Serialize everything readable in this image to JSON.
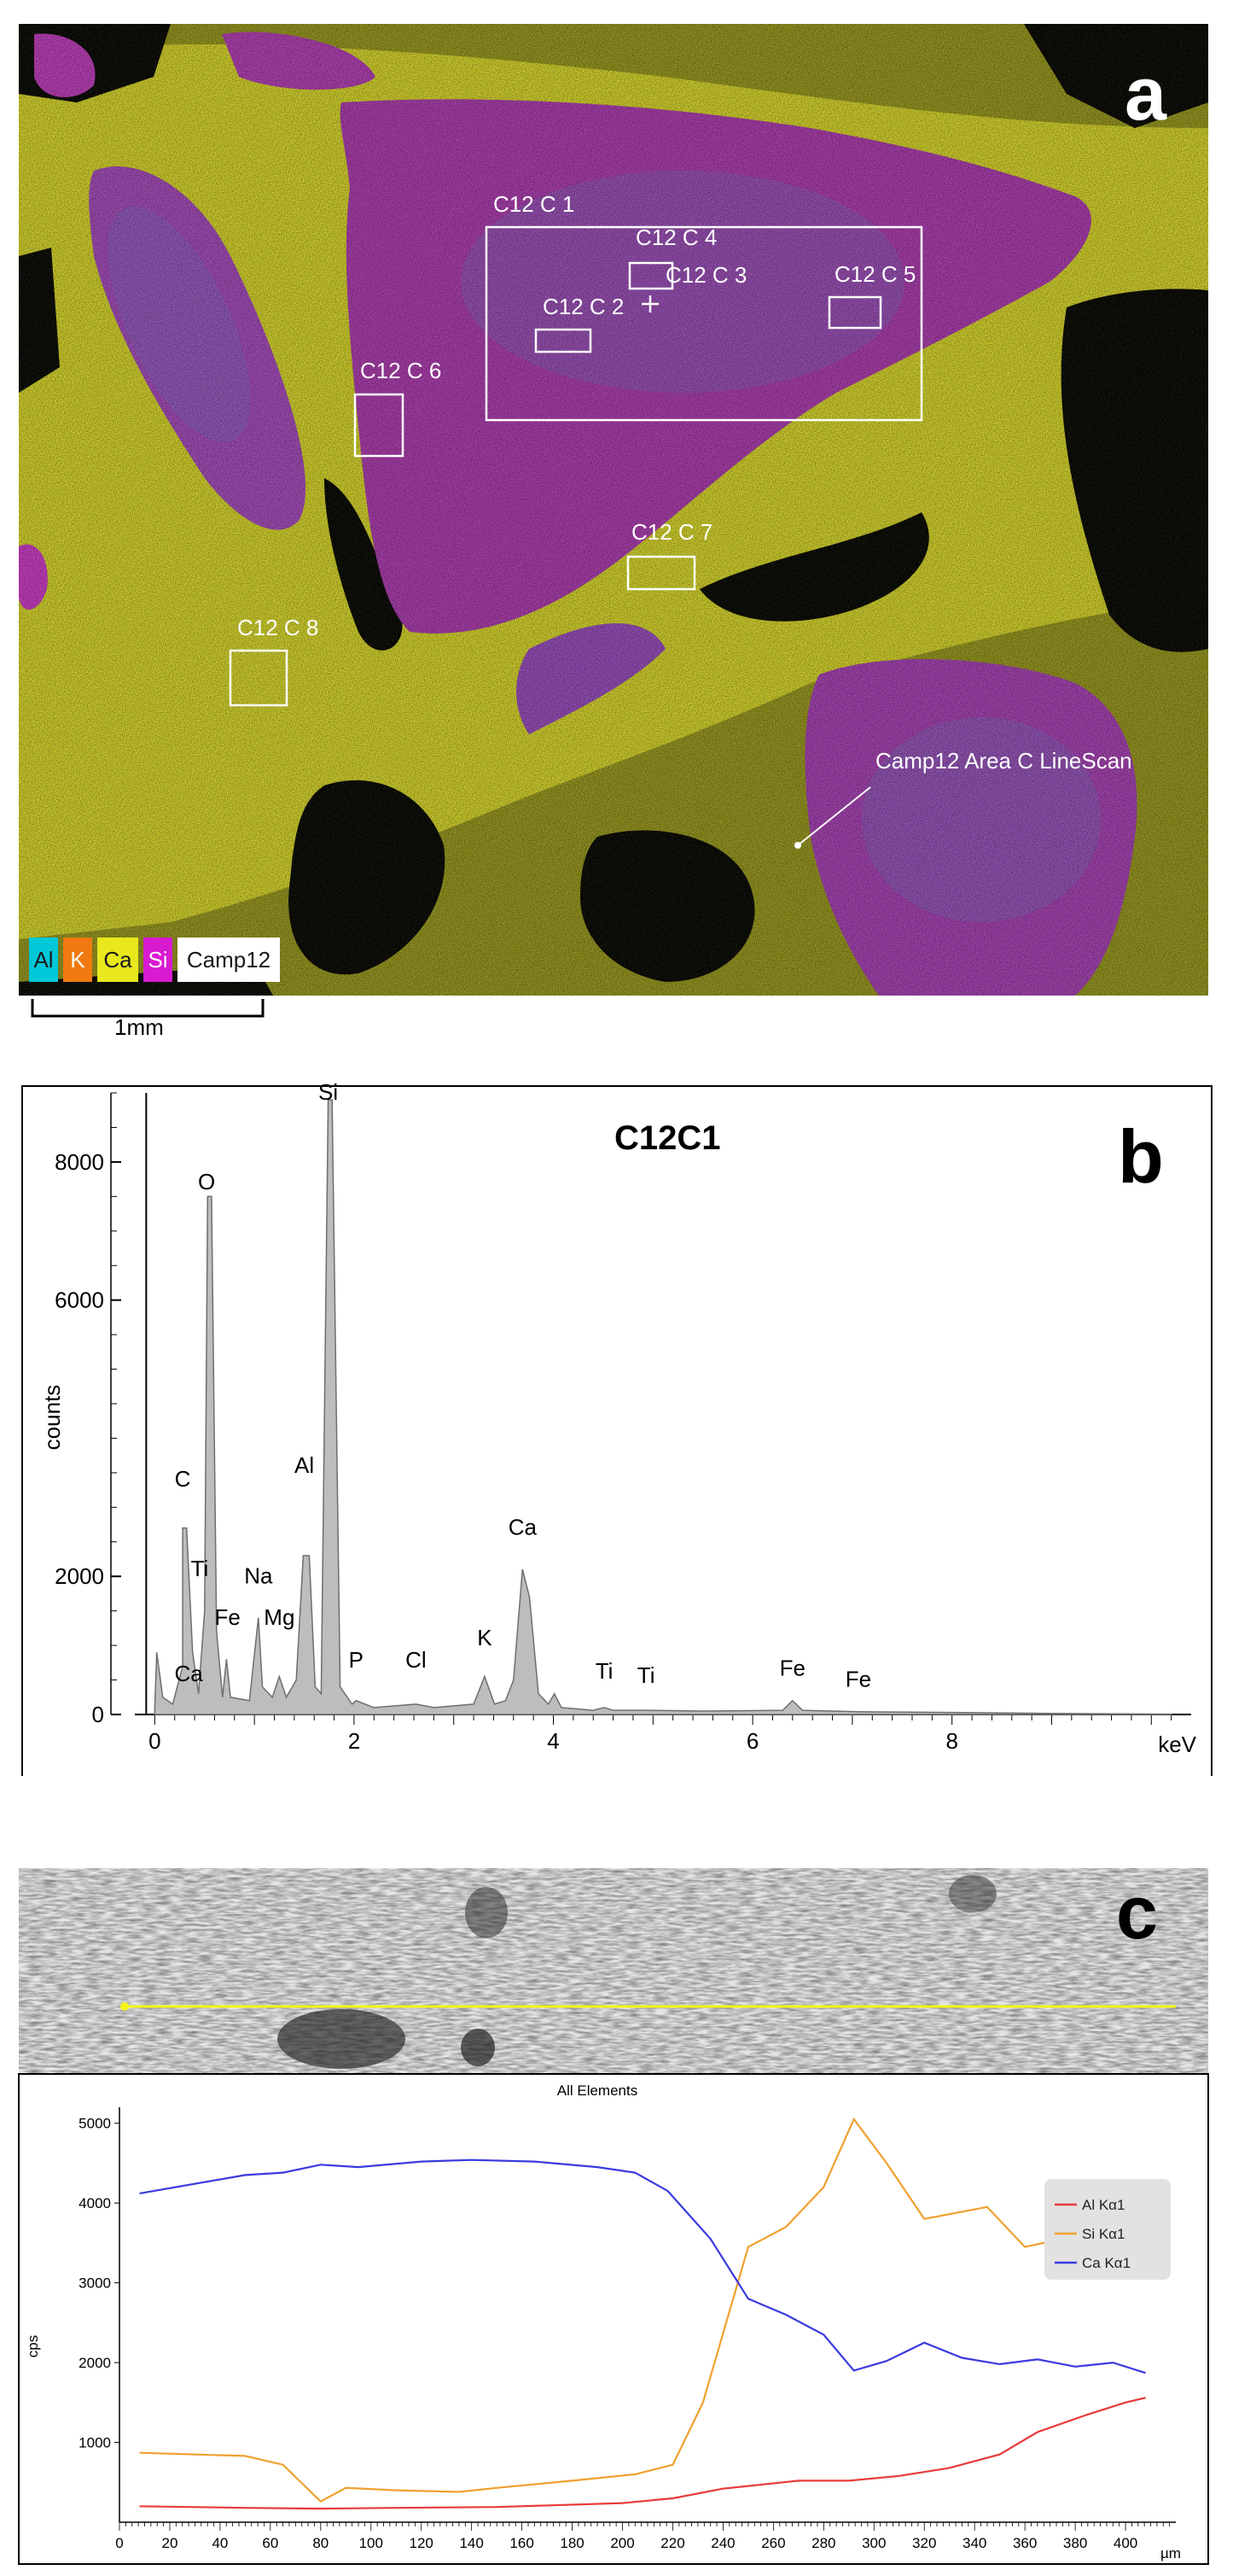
{
  "panel_a": {
    "letter": "a",
    "region_labels": [
      "C12 C 1",
      "C12 C 4",
      "C12 C 3",
      "C12 C 2",
      "C12 C 5",
      "C12 C 6",
      "C12 C 7",
      "C12 C 8"
    ],
    "linescan_label": "Camp12 Area C LineScan",
    "legend": [
      {
        "label": "Al",
        "color": "#00c8d8"
      },
      {
        "label": "K",
        "color": "#f07a10"
      },
      {
        "label": "Ca",
        "color": "#e8e81c"
      },
      {
        "label": "Si",
        "color": "#d81ad0"
      },
      {
        "label": "Camp12",
        "color": "#ffffff"
      }
    ],
    "scale_bar": "1mm",
    "colors": {
      "background": "#0a0a0a",
      "ca_yellow": "#cfcf2a",
      "si_magenta": "#a93aa8",
      "grain_blue": "#7a6fb0"
    }
  },
  "chart_data": [
    {
      "type": "line",
      "panel_letter": "b",
      "title": "C12C1",
      "xlabel": "keV",
      "ylabel": "counts",
      "xlim": [
        -0.2,
        10.4
      ],
      "ylim": [
        0,
        9000
      ],
      "xticks": [
        0,
        2,
        4,
        6,
        8
      ],
      "yticks": [
        0,
        2000,
        6000,
        8000
      ],
      "series": [
        {
          "values": [
            [
              0.0,
              100
            ],
            [
              0.02,
              900
            ],
            [
              0.08,
              250
            ],
            [
              0.18,
              150
            ],
            [
              0.28,
              700
            ],
            [
              0.28,
              2700
            ],
            [
              0.32,
              2700
            ],
            [
              0.38,
              900
            ],
            [
              0.44,
              300
            ],
            [
              0.5,
              1500
            ],
            [
              0.53,
              7500
            ],
            [
              0.57,
              7500
            ],
            [
              0.62,
              1200
            ],
            [
              0.68,
              250
            ],
            [
              0.72,
              800
            ],
            [
              0.76,
              250
            ],
            [
              0.95,
              200
            ],
            [
              1.04,
              1400
            ],
            [
              1.08,
              400
            ],
            [
              1.18,
              250
            ],
            [
              1.25,
              550
            ],
            [
              1.32,
              250
            ],
            [
              1.42,
              500
            ],
            [
              1.49,
              2300
            ],
            [
              1.55,
              2300
            ],
            [
              1.61,
              400
            ],
            [
              1.67,
              300
            ],
            [
              1.74,
              8900
            ],
            [
              1.78,
              8900
            ],
            [
              1.86,
              400
            ],
            [
              1.98,
              150
            ],
            [
              2.02,
              200
            ],
            [
              2.2,
              100
            ],
            [
              2.62,
              150
            ],
            [
              2.8,
              100
            ],
            [
              3.2,
              150
            ],
            [
              3.31,
              550
            ],
            [
              3.41,
              150
            ],
            [
              3.52,
              200
            ],
            [
              3.6,
              500
            ],
            [
              3.69,
              2100
            ],
            [
              3.76,
              1700
            ],
            [
              3.85,
              300
            ],
            [
              3.95,
              150
            ],
            [
              4.01,
              300
            ],
            [
              4.08,
              100
            ],
            [
              4.4,
              60
            ],
            [
              4.51,
              100
            ],
            [
              4.6,
              60
            ],
            [
              4.93,
              60
            ],
            [
              5.5,
              50
            ],
            [
              6.3,
              60
            ],
            [
              6.4,
              200
            ],
            [
              6.5,
              60
            ],
            [
              7.06,
              40
            ],
            [
              8.0,
              30
            ],
            [
              9.0,
              15
            ],
            [
              10.2,
              5
            ]
          ]
        }
      ],
      "peak_labels": [
        {
          "label": "Si",
          "x": 1.74,
          "y": 8900
        },
        {
          "label": "O",
          "x": 0.52,
          "y": 7600
        },
        {
          "label": "C",
          "x": 0.28,
          "y": 3300
        },
        {
          "label": "Al",
          "x": 1.5,
          "y": 3500
        },
        {
          "label": "Ca",
          "x": 3.69,
          "y": 2600
        },
        {
          "label": "Ti",
          "x": 0.45,
          "y": 2000
        },
        {
          "label": "Na",
          "x": 1.04,
          "y": 1900
        },
        {
          "label": "Fe",
          "x": 0.73,
          "y": 1300
        },
        {
          "label": "Mg",
          "x": 1.25,
          "y": 1300
        },
        {
          "label": "Ca",
          "x": 0.34,
          "y": 480
        },
        {
          "label": "P",
          "x": 2.02,
          "y": 680
        },
        {
          "label": "Cl",
          "x": 2.62,
          "y": 680
        },
        {
          "label": "K",
          "x": 3.31,
          "y": 1000
        },
        {
          "label": "Ti",
          "x": 4.51,
          "y": 520
        },
        {
          "label": "Ti",
          "x": 4.93,
          "y": 460
        },
        {
          "label": "Fe",
          "x": 6.4,
          "y": 560
        },
        {
          "label": "Fe",
          "x": 7.06,
          "y": 400
        }
      ]
    },
    {
      "type": "line",
      "panel_letter": "c",
      "title": "All Elements",
      "xlabel": "µm",
      "ylabel": "cps",
      "xlim": [
        0,
        420
      ],
      "ylim": [
        0,
        5200
      ],
      "xticks": [
        0,
        20,
        40,
        60,
        80,
        100,
        120,
        140,
        160,
        180,
        200,
        220,
        240,
        260,
        280,
        300,
        320,
        340,
        360,
        380,
        400
      ],
      "yticks": [
        1000,
        2000,
        3000,
        4000,
        5000
      ],
      "series": [
        {
          "name": "Al Kα1",
          "color": "#e83a3a",
          "values": [
            [
              8,
              200
            ],
            [
              50,
              180
            ],
            [
              80,
              170
            ],
            [
              110,
              180
            ],
            [
              150,
              190
            ],
            [
              200,
              240
            ],
            [
              220,
              300
            ],
            [
              240,
              420
            ],
            [
              270,
              520
            ],
            [
              290,
              520
            ],
            [
              310,
              580
            ],
            [
              330,
              680
            ],
            [
              350,
              850
            ],
            [
              365,
              1130
            ],
            [
              385,
              1350
            ],
            [
              400,
              1500
            ],
            [
              408,
              1560
            ]
          ]
        },
        {
          "name": "Si Kα1",
          "color": "#f0a030",
          "values": [
            [
              8,
              870
            ],
            [
              50,
              830
            ],
            [
              65,
              720
            ],
            [
              80,
              260
            ],
            [
              90,
              430
            ],
            [
              110,
              400
            ],
            [
              135,
              380
            ],
            [
              150,
              430
            ],
            [
              180,
              520
            ],
            [
              205,
              600
            ],
            [
              220,
              720
            ],
            [
              232,
              1500
            ],
            [
              250,
              3450
            ],
            [
              265,
              3700
            ],
            [
              280,
              4200
            ],
            [
              292,
              5050
            ],
            [
              305,
              4500
            ],
            [
              320,
              3800
            ],
            [
              345,
              3950
            ],
            [
              360,
              3450
            ],
            [
              375,
              3550
            ],
            [
              390,
              3150
            ],
            [
              408,
              3400
            ]
          ]
        },
        {
          "name": "Ca Kα1",
          "color": "#3a3ae0",
          "values": [
            [
              8,
              4120
            ],
            [
              50,
              4350
            ],
            [
              65,
              4380
            ],
            [
              80,
              4480
            ],
            [
              95,
              4450
            ],
            [
              120,
              4520
            ],
            [
              140,
              4540
            ],
            [
              165,
              4520
            ],
            [
              190,
              4450
            ],
            [
              205,
              4380
            ],
            [
              218,
              4150
            ],
            [
              235,
              3550
            ],
            [
              250,
              2800
            ],
            [
              265,
              2600
            ],
            [
              280,
              2350
            ],
            [
              292,
              1900
            ],
            [
              305,
              2020
            ],
            [
              320,
              2250
            ],
            [
              335,
              2060
            ],
            [
              350,
              1980
            ],
            [
              365,
              2040
            ],
            [
              380,
              1950
            ],
            [
              395,
              2000
            ],
            [
              408,
              1870
            ]
          ]
        }
      ]
    }
  ]
}
